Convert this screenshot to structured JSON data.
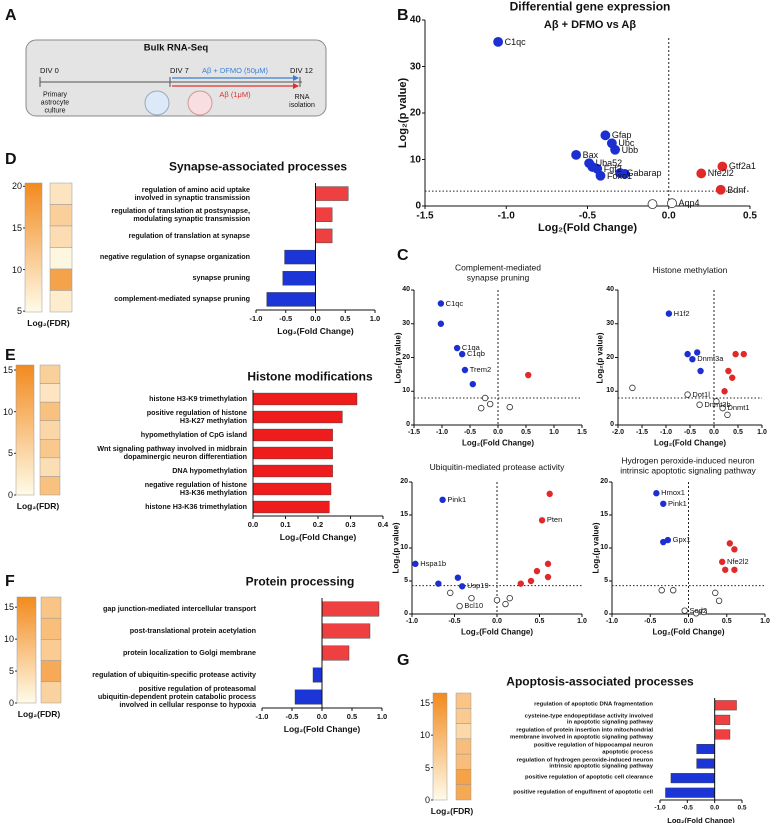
{
  "panel_labels": [
    "A",
    "B",
    "C",
    "D",
    "E",
    "F",
    "G"
  ],
  "diagram": {
    "title": "Bulk RNA-Seq",
    "timepoints": [
      "DIV 0",
      "DIV 7",
      "DIV 12"
    ],
    "treatments": [
      "Aβ + DFMO (50μM)",
      "Aβ (1μM)"
    ],
    "start_label": "Primary\nastrocyte\nculture",
    "end_label": "RNA\nisolation"
  },
  "chart_data": [
    {
      "type": "scatter",
      "title": "Differential gene expression",
      "subtitle": "Aβ + DFMO vs Aβ",
      "x_label": "Log₂(Fold Change)",
      "y_label": "Log₂(p value)",
      "xlim": [
        -1.5,
        0.5
      ],
      "xticks": [
        -1.5,
        {
          "value": -1,
          "label": "-1.0"
        },
        -0.5,
        {
          "value": 0,
          "label": "0.0"
        },
        0.5
      ],
      "ylim": [
        0,
        40
      ],
      "yticks": [
        0,
        10,
        20,
        30,
        40
      ],
      "vline": 0,
      "hline": 3.2,
      "series": [
        {
          "color": "#1c2fd0",
          "x": [
            -1.05,
            -0.39,
            -0.35,
            -0.33,
            -0.57,
            -0.49,
            -0.47,
            -0.44,
            -0.42,
            -0.3,
            -0.27
          ],
          "y": [
            35.3,
            15.2,
            13.5,
            12.1,
            11,
            9.2,
            8.4,
            8,
            6.5,
            7.1,
            6.9
          ],
          "labels": [
            "C1qc",
            "Gfap",
            "Ubc",
            "Ubb",
            "Bax",
            "Uba52",
            null,
            "Fgf2",
            "Foxo1",
            "Gabarap",
            null
          ]
        },
        {
          "color": "#e02a2a",
          "x": [
            0.33,
            0.2,
            0.32
          ],
          "y": [
            8.5,
            7,
            3.5
          ],
          "labels": [
            "Gtf2a1",
            "Nfe2l2",
            "Bdnf"
          ]
        },
        {
          "color": "#ffffff",
          "x": [
            -0.1,
            0.02
          ],
          "y": [
            0.4,
            0.6
          ],
          "labels": [
            null,
            "Aqp4"
          ]
        }
      ]
    },
    {
      "type": "scatter",
      "title": "Complement-mediated\nsynapse pruning",
      "x_label": "Log₂(Fold Change)",
      "y_label": "Log₂(p value)",
      "xlim": [
        -1.5,
        1.5
      ],
      "xticks": [
        -1.5,
        {
          "value": -1,
          "label": "-1.0"
        },
        -0.5,
        {
          "value": 0,
          "label": "0.0"
        },
        0.5,
        {
          "value": 1,
          "label": "1.0"
        },
        1.5
      ],
      "ylim": [
        0,
        40
      ],
      "yticks": [
        0,
        10,
        20,
        30,
        40
      ],
      "vline": 0,
      "hline": 8,
      "series": [
        {
          "color": "#1c2fd0",
          "x": [
            -1.02,
            -1.02,
            -0.73,
            -0.64,
            -0.59,
            -0.45
          ],
          "y": [
            36,
            30,
            22.8,
            21,
            16.3,
            12.1
          ],
          "labels": [
            "C1qc",
            null,
            "C1qa",
            "C1qb",
            "Trem2",
            null
          ]
        },
        {
          "color": "#e02a2a",
          "x": [
            0.54
          ],
          "y": [
            14.8
          ],
          "labels": [
            null
          ]
        },
        {
          "color": "#ffffff",
          "x": [
            -0.3,
            -0.23,
            -0.14,
            0.21
          ],
          "y": [
            5,
            8,
            6.2,
            5.3
          ],
          "labels": [
            null,
            null,
            null,
            null
          ]
        }
      ]
    },
    {
      "type": "scatter",
      "title": "Histone methylation",
      "x_label": "Log₂(Fold Change)",
      "y_label": "Log₂(p value)",
      "xlim": [
        -2,
        1
      ],
      "xticks": [
        {
          "value": -2,
          "label": "-2.0"
        },
        -1.5,
        {
          "value": -1,
          "label": "-1.0"
        },
        -0.5,
        {
          "value": 0,
          "label": "0.0"
        },
        0.5,
        {
          "value": 1,
          "label": "1.0"
        }
      ],
      "ylim": [
        0,
        40
      ],
      "yticks": [
        0,
        10,
        20,
        30,
        40
      ],
      "vline": 0,
      "hline": 8,
      "series": [
        {
          "color": "#1c2fd0",
          "x": [
            -0.94,
            -0.55,
            -0.35,
            -0.45,
            -0.28
          ],
          "y": [
            33,
            21,
            21.5,
            19.5,
            16
          ],
          "labels": [
            "H1f2",
            null,
            null,
            "Dnmt3a",
            null
          ]
        },
        {
          "color": "#e02a2a",
          "x": [
            0.3,
            0.45,
            0.62,
            0.38,
            0.22
          ],
          "y": [
            16,
            21,
            21,
            14,
            10
          ],
          "labels": [
            null,
            null,
            null,
            null,
            null
          ]
        },
        {
          "color": "#ffffff",
          "x": [
            -1.7,
            -0.55,
            -0.3,
            0.05,
            0.18,
            0.28
          ],
          "y": [
            11,
            9,
            6,
            7,
            5,
            3
          ],
          "labels": [
            null,
            "Dot1l",
            "Dnmt3b",
            null,
            "Dnmt1",
            null
          ]
        }
      ]
    },
    {
      "type": "scatter",
      "title": "Ubiquitin-mediated protease activity",
      "x_label": "Log₂(Fold Change)",
      "y_label": "Log₂(p value)",
      "xlim": [
        -1,
        1
      ],
      "xticks": [
        {
          "value": -1,
          "label": "-1.0"
        },
        -0.5,
        {
          "value": 0,
          "label": "0.0"
        },
        0.5,
        {
          "value": 1,
          "label": "1.0"
        }
      ],
      "ylim": [
        0,
        20
      ],
      "yticks": [
        0,
        5,
        10,
        15,
        20
      ],
      "vline": 0,
      "hline": 4.3,
      "series": [
        {
          "color": "#1c2fd0",
          "x": [
            -0.64,
            -0.96,
            -0.69,
            -0.46,
            -0.41
          ],
          "y": [
            17.3,
            7.6,
            4.6,
            5.5,
            4.2
          ],
          "labels": [
            "Pink1",
            "Hspa1b",
            null,
            null,
            "Usp19"
          ]
        },
        {
          "color": "#e02a2a",
          "x": [
            0.53,
            0.62,
            0.6,
            0.47,
            0.6,
            0.4,
            0.28
          ],
          "y": [
            14.2,
            18.2,
            7.6,
            6.5,
            5.6,
            5,
            4.6
          ],
          "labels": [
            "Pten",
            null,
            null,
            null,
            null,
            null,
            null
          ]
        },
        {
          "color": "#ffffff",
          "x": [
            -0.44,
            -0.3,
            0,
            0.15,
            -0.55,
            0.1
          ],
          "y": [
            1.2,
            2.4,
            2.1,
            2.4,
            3.2,
            1.5
          ],
          "labels": [
            "Bcl10",
            null,
            null,
            null,
            null,
            null
          ]
        }
      ]
    },
    {
      "type": "scatter",
      "title": "Hydrogen peroxide-induced neuron\nintrinsic apoptotic signaling pathway",
      "x_label": "Log₂(Fold Change)",
      "y_label": "Log₂(p value)",
      "xlim": [
        -1,
        1
      ],
      "xticks": [
        {
          "value": -1,
          "label": "-1.0"
        },
        -0.5,
        {
          "value": 0,
          "label": "0.0"
        },
        0.5,
        {
          "value": 1,
          "label": "1.0"
        }
      ],
      "ylim": [
        0,
        20
      ],
      "yticks": [
        0,
        5,
        10,
        15,
        20
      ],
      "vline": 0,
      "hline": 4.3,
      "series": [
        {
          "color": "#1c2fd0",
          "x": [
            -0.42,
            -0.33,
            -0.27,
            -0.33
          ],
          "y": [
            18.3,
            16.7,
            11.2,
            10.9
          ],
          "labels": [
            "Hmox1",
            "Pink1",
            "Gpx1",
            null
          ]
        },
        {
          "color": "#e02a2a",
          "x": [
            0.44,
            0.54,
            0.6,
            0.48,
            0.6
          ],
          "y": [
            7.9,
            10.7,
            9.8,
            6.7,
            6.7
          ],
          "labels": [
            "Nfe2l2",
            null,
            null,
            null,
            null
          ]
        },
        {
          "color": "#ffffff",
          "x": [
            -0.35,
            -0.2,
            0.35,
            0.4,
            0.2,
            0.1,
            -0.05
          ],
          "y": [
            3.6,
            3.6,
            3.2,
            2,
            0.3,
            0.1,
            0.5
          ],
          "labels": [
            null,
            null,
            null,
            null,
            null,
            null,
            "Sod2"
          ]
        }
      ]
    },
    {
      "type": "barh",
      "title": "Synapse-associated processes",
      "x_label": "Log₂(Fold Change)",
      "categories": [
        "regulation of amino acid uptake\ninvolved in synaptic transmission",
        "regulation of translation at postsynapse,\nmodulating synaptic transmission",
        "regulation of translation at synapse",
        "negative regulation of synapse organization",
        "synapse pruning",
        "complement-mediated synapse pruning"
      ],
      "values": [
        0.55,
        0.28,
        0.28,
        -0.52,
        -0.55,
        -0.82
      ],
      "xlim": [
        -1,
        1
      ],
      "xticks": [
        {
          "value": -1,
          "label": "-1.0"
        },
        -0.5,
        {
          "value": 0,
          "label": "0.0"
        },
        0.5,
        {
          "value": 1,
          "label": "1.0"
        }
      ],
      "colors": {
        "positive": "#ee4040",
        "negative": "#1b35d6"
      },
      "fdr": {
        "label": "Log₂(FDR)",
        "values": [
          8,
          11,
          9,
          5.5,
          17,
          7
        ],
        "zlim": [
          4.9,
          20.4
        ],
        "zticks": [
          5,
          10,
          15,
          20
        ],
        "colors": [
          "#fffbe8",
          "#f28a1e"
        ]
      }
    },
    {
      "type": "barh",
      "title": "Histone modifications",
      "x_label": "Log₂(Fold Change)",
      "categories": [
        "histone H3-K9 trimethylation",
        "positive regulation of histone\nH3-K27 methylation",
        "hypomethylation of CpG island",
        "Wnt signaling pathway involved in midbrain\ndopaminergic neuron differentiation",
        "DNA hypomethylation",
        "negative regulation of histone\nH3-K36 methylation",
        "histone H3-K36 trimethylation"
      ],
      "values": [
        0.32,
        0.275,
        0.245,
        0.245,
        0.245,
        0.24,
        0.235
      ],
      "xlim": [
        0,
        0.4
      ],
      "xticks": [
        {
          "value": 0,
          "label": "0.0"
        },
        0.1,
        0.2,
        0.3,
        0.4
      ],
      "colors": {
        "positive": "#ee1c1c",
        "negative": "#1b35d6"
      },
      "fdr": {
        "label": "Log₂(FDR)",
        "values": [
          6,
          3,
          8,
          5,
          7,
          4,
          8
        ],
        "zlim": [
          0,
          15.6
        ],
        "zticks": [
          0,
          5,
          10,
          15
        ],
        "colors": [
          "#fffbe8",
          "#f28a1e"
        ]
      }
    },
    {
      "type": "barh",
      "title": "Protein processing",
      "x_label": "Log₂(Fold Change)",
      "categories": [
        "gap junction-mediated intercellular transport",
        "post-translational protein acetylation",
        "protein localization to Golgi membrane",
        "regulation of ubiquitin-specific protease activity",
        "positive regulation of proteasomal\nubiquitin-dependent protein catabolic process\ninvolved in cellular response to hypoxia"
      ],
      "values": [
        0.95,
        0.8,
        0.45,
        -0.15,
        -0.45
      ],
      "xlim": [
        -1,
        1
      ],
      "xticks": [
        {
          "value": -1,
          "label": "-1.0"
        },
        -0.5,
        {
          "value": 0,
          "label": "0.0"
        },
        0.5,
        {
          "value": 1,
          "label": "1.0"
        }
      ],
      "colors": {
        "positive": "#ee4040",
        "negative": "#1b35d6"
      },
      "fdr": {
        "label": "Log₂(FDR)",
        "values": [
          8,
          9,
          7,
          12,
          6
        ],
        "zlim": [
          0,
          16.6
        ],
        "zticks": [
          0,
          5,
          10,
          15
        ],
        "colors": [
          "#fffbe8",
          "#f28a1e"
        ]
      }
    },
    {
      "type": "barh",
      "title": "Apoptosis-associated processes",
      "x_label": "Log₂(Fold Change)",
      "categories": [
        "regulation of apoptotic DNA fragmentation",
        "cysteine-type endopeptidase activity involved\nin apoptotic signaling pathway",
        "regulation of protein insertion into mitochondrial\nmembrane involved in apoptotic signaling pathway",
        "positive regulation of hippocampal neuron\napoptotic process",
        "regulation of hydrogen peroxide-induced neuron\nintrinsic apoptotic signaling pathway",
        "positive regulation of apoptotic cell clearance",
        "positive regulation of engulfment of apoptotic cell"
      ],
      "values": [
        0.4,
        0.28,
        0.28,
        -0.33,
        -0.33,
        -0.8,
        -0.9
      ],
      "xlim": [
        -1,
        0.5
      ],
      "xticks": [
        {
          "value": -1,
          "label": "-1.0"
        },
        -0.5,
        {
          "value": 0,
          "label": "0.0"
        },
        0.5
      ],
      "colors": {
        "positive": "#ee4040",
        "negative": "#1b35d6"
      },
      "fdr": {
        "label": "Log₂(FDR)",
        "values": [
          8,
          7,
          5,
          9,
          9,
          13,
          12
        ],
        "zlim": [
          0,
          16.5
        ],
        "zticks": [
          0,
          5,
          10,
          15
        ],
        "colors": [
          "#fffbe8",
          "#f28a1e"
        ]
      }
    }
  ]
}
